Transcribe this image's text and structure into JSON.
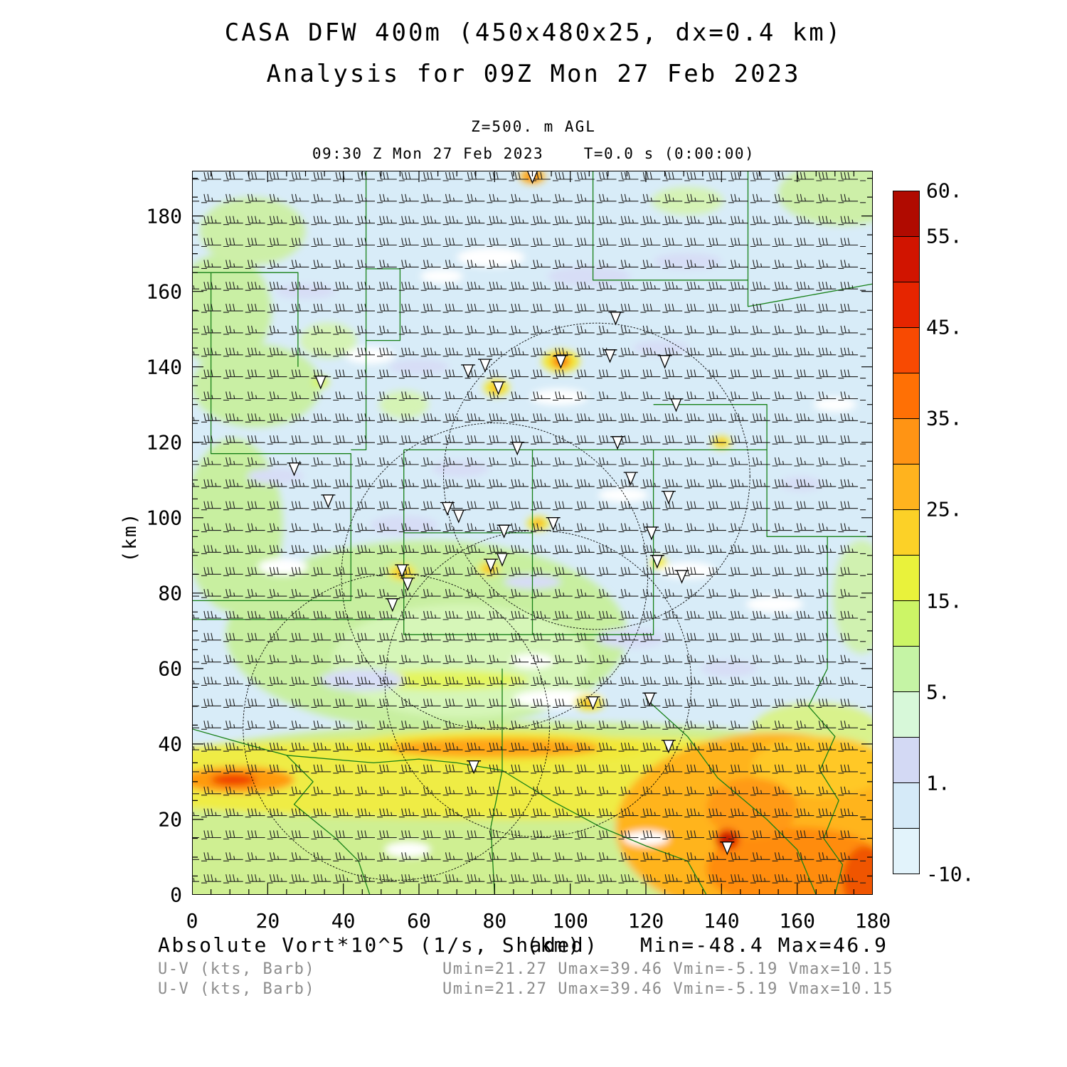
{
  "header": {
    "title_line1": "CASA DFW 400m (450x480x25, dx=0.4 km)",
    "title_line2": "Analysis for 09Z Mon 27 Feb 2023",
    "level_label": "Z=500. m AGL",
    "time_label": "09:30 Z Mon 27 Feb 2023    T=0.0 s (0:00:00)"
  },
  "annotations": {
    "row1_left": "Absolute Vort*10^5 (1/s, Shaded)",
    "row1_mid": "(km)",
    "row1_right": "Min=-48.4 Max=46.9",
    "row2_left": "U-V (kts, Barb)",
    "row2_right": "Umin=21.27 Umax=39.46 Vmin=-5.19 Vmax=10.15",
    "row3_left": "U-V (kts, Barb)",
    "row3_right": "Umin=21.27 Umax=39.46 Vmin=-5.19 Vmax=10.15"
  },
  "axes": {
    "x_unit": "(km)",
    "y_unit": "(km)",
    "x_range_km": [
      0,
      180
    ],
    "y_range_km": [
      0,
      192
    ],
    "x_tick_labels": [
      "0",
      "20",
      "40",
      "60",
      "80",
      "100",
      "120",
      "140",
      "160",
      "180"
    ],
    "y_tick_labels": [
      "0",
      "20",
      "40",
      "60",
      "80",
      "100",
      "120",
      "140",
      "160",
      "180"
    ],
    "tick_step_major_km": 20,
    "tick_step_minor_km": 5
  },
  "colorbar": {
    "cell_colors_bottom_to_top": [
      "#E2F3FB",
      "#D5EAF8",
      "#D3D9F4",
      "#D7F8D9",
      "#C5F4A5",
      "#CCF566",
      "#E9F23B",
      "#FCD127",
      "#FFB31E",
      "#FF9414",
      "#FF7005",
      "#F84A02",
      "#E62500",
      "#D11400",
      "#B00A00"
    ],
    "levels": [
      -10,
      -5,
      1,
      3,
      5,
      10,
      15,
      20,
      25,
      30,
      35,
      40,
      45,
      50,
      55,
      60
    ],
    "ticks": [
      {
        "label": "60.",
        "cell_from_top": 0
      },
      {
        "label": "55.",
        "cell_from_top": 1
      },
      {
        "label": "45.",
        "cell_from_top": 3
      },
      {
        "label": "35.",
        "cell_from_top": 5
      },
      {
        "label": "25.",
        "cell_from_top": 7
      },
      {
        "label": "15.",
        "cell_from_top": 9
      },
      {
        "label": "5.",
        "cell_from_top": 11
      },
      {
        "label": "1.",
        "cell_from_top": 13
      },
      {
        "label": "-10.",
        "cell_from_top": 15
      }
    ]
  },
  "chart_data": {
    "type": "heatmap",
    "title": "CASA DFW 400m (450x480x25, dx=0.4 km) Analysis for 09Z Mon 27 Feb 2023",
    "field": "Absolute Vort*10^5 (1/s, Shaded)",
    "field_min": -48.4,
    "field_max": 46.9,
    "wind": {
      "units": "kts",
      "umin": 21.27,
      "umax": 39.46,
      "vmin": -5.19,
      "vmax": 10.15
    },
    "grid_dims": "450x480x25",
    "dx_km": 0.4,
    "level": "Z=500. m AGL",
    "valid_time": "09:30 Z Mon 27 Feb 2023",
    "forecast_time": "T=0.0 s (0:00:00)",
    "xlabel": "(km)",
    "ylabel": "(km)",
    "xlim": [
      0,
      180
    ],
    "ylim": [
      0,
      192
    ],
    "colors": {
      "background_fill": "#D8ECF8",
      "county_line": "#178017",
      "range_circle": "#000000",
      "barb": "#1c1c1c"
    },
    "barb_grid": {
      "cols": 31,
      "rows": 33,
      "speed_range_kts": [
        21,
        40
      ]
    },
    "range_circles_km": [
      {
        "cx": 107,
        "cy": 111,
        "r": 40.5
      },
      {
        "cx": 80,
        "cy": 84.5,
        "r": 40.5
      },
      {
        "cx": 91.5,
        "cy": 56,
        "r": 40.5
      },
      {
        "cx": 54,
        "cy": 44.5,
        "r": 40.5
      }
    ],
    "radar_sites_km": [
      [
        90,
        190.5
      ],
      [
        34,
        136
      ],
      [
        73,
        139
      ],
      [
        77.5,
        140.5
      ],
      [
        81,
        134.5
      ],
      [
        97.5,
        141.5
      ],
      [
        110.5,
        143
      ],
      [
        125,
        141.5
      ],
      [
        112,
        153
      ],
      [
        128,
        130
      ],
      [
        112.5,
        120
      ],
      [
        86,
        118.5
      ],
      [
        116,
        110.5
      ],
      [
        126,
        105.5
      ],
      [
        27,
        113
      ],
      [
        36,
        104.5
      ],
      [
        67.5,
        102.5
      ],
      [
        70.5,
        100.5
      ],
      [
        82.5,
        96.5
      ],
      [
        95.5,
        98.5
      ],
      [
        121.5,
        96
      ],
      [
        123,
        88.5
      ],
      [
        129.5,
        84.5
      ],
      [
        55.5,
        86
      ],
      [
        57,
        82.5
      ],
      [
        53,
        77
      ],
      [
        79,
        87.5
      ],
      [
        82,
        89
      ],
      [
        106,
        51
      ],
      [
        121,
        52
      ],
      [
        126,
        39.5
      ],
      [
        74.5,
        34
      ],
      [
        141.5,
        12.5
      ]
    ],
    "county_lines_km": [
      [
        [
          0,
          165
        ],
        [
          28,
          165
        ],
        [
          28,
          140
        ]
      ],
      [
        [
          5,
          165
        ],
        [
          5,
          117
        ],
        [
          28,
          117
        ]
      ],
      [
        [
          28,
          117
        ],
        [
          42,
          117
        ],
        [
          42,
          78
        ],
        [
          0,
          78
        ]
      ],
      [
        [
          46,
          192
        ],
        [
          46,
          118
        ],
        [
          42,
          118
        ]
      ],
      [
        [
          46,
          166
        ],
        [
          55,
          166
        ],
        [
          55,
          147
        ],
        [
          46,
          147
        ]
      ],
      [
        [
          106,
          192
        ],
        [
          106,
          163
        ],
        [
          147,
          163
        ]
      ],
      [
        [
          147,
          192
        ],
        [
          147,
          156
        ],
        [
          158,
          158
        ],
        [
          180,
          162
        ]
      ],
      [
        [
          56,
          118
        ],
        [
          90,
          118
        ],
        [
          90,
          96
        ],
        [
          56,
          96
        ],
        [
          56,
          118
        ]
      ],
      [
        [
          90,
          118
        ],
        [
          122,
          118
        ],
        [
          122,
          69
        ],
        [
          90,
          69
        ],
        [
          90,
          96
        ]
      ],
      [
        [
          56,
          96
        ],
        [
          56,
          69
        ],
        [
          90,
          69
        ]
      ],
      [
        [
          0,
          73
        ],
        [
          56,
          73
        ]
      ],
      [
        [
          122,
          118
        ],
        [
          152,
          118
        ],
        [
          152,
          130
        ],
        [
          122,
          130
        ]
      ],
      [
        [
          152,
          118
        ],
        [
          152,
          95
        ],
        [
          168,
          95
        ],
        [
          168,
          60
        ]
      ],
      [
        [
          168,
          95
        ],
        [
          180,
          95
        ]
      ],
      [
        [
          0,
          44
        ],
        [
          14,
          40
        ],
        [
          25,
          37
        ],
        [
          32,
          30
        ],
        [
          27,
          24
        ],
        [
          38,
          15
        ],
        [
          44,
          9
        ],
        [
          47,
          0
        ]
      ],
      [
        [
          25,
          37
        ],
        [
          48,
          35
        ],
        [
          60,
          36
        ],
        [
          70,
          35
        ],
        [
          82,
          33
        ]
      ],
      [
        [
          82,
          60
        ],
        [
          82,
          33
        ],
        [
          79,
          18
        ],
        [
          80,
          0
        ]
      ],
      [
        [
          82,
          33
        ],
        [
          95,
          25
        ],
        [
          108,
          18
        ],
        [
          120,
          13
        ],
        [
          131,
          9
        ],
        [
          136,
          0
        ]
      ],
      [
        [
          120,
          52
        ],
        [
          131,
          42
        ],
        [
          139,
          31
        ],
        [
          152,
          20
        ],
        [
          160,
          12
        ],
        [
          165,
          0
        ]
      ],
      [
        [
          168,
          60
        ],
        [
          163,
          50
        ],
        [
          170,
          42
        ],
        [
          166,
          33
        ],
        [
          171,
          25
        ],
        [
          167,
          15
        ],
        [
          172,
          8
        ],
        [
          170,
          0
        ]
      ]
    ],
    "shading_blobs_km": [
      [
        90,
        16,
        140,
        30,
        "#CFEF92"
      ],
      [
        90,
        31,
        135,
        11,
        "#EFEC45"
      ],
      [
        62,
        69,
        53,
        25,
        "#C8EFA0"
      ],
      [
        71,
        62,
        34,
        15,
        "#D6F6B8"
      ],
      [
        66,
        57,
        23,
        2.6,
        "#E3F55E"
      ],
      [
        11,
        98,
        13,
        23,
        "#C8EFA0"
      ],
      [
        17,
        135,
        17,
        11,
        "#C9EFA4"
      ],
      [
        8,
        155,
        13,
        15,
        "#C9EFA4"
      ],
      [
        16,
        176,
        14,
        9,
        "#CDEFA8"
      ],
      [
        36,
        147,
        7.5,
        4.7,
        "#D5F3B5"
      ],
      [
        56,
        130,
        6.5,
        3.7,
        "#D5F3B5"
      ],
      [
        172,
        186,
        17,
        8.5,
        "#CDEFA8"
      ],
      [
        131,
        184,
        9.5,
        3.7,
        "#D5F3B5"
      ],
      [
        177,
        79,
        7.5,
        15,
        "#D0F1B0"
      ],
      [
        165,
        43.5,
        17,
        7.5,
        "#D9F28C"
      ],
      [
        154,
        18,
        42,
        25,
        "#FFB41E"
      ],
      [
        166,
        34,
        18,
        8,
        "#FFC825"
      ],
      [
        160,
        7,
        24,
        11,
        "#FF8C0F"
      ],
      [
        148,
        23,
        12,
        8,
        "#FF9A14"
      ],
      [
        178,
        4,
        6,
        9,
        "#F05505"
      ],
      [
        12,
        30.5,
        15,
        3.5,
        "#FF9A10"
      ],
      [
        11,
        30.5,
        6,
        1.6,
        "#EF3D02"
      ],
      [
        80,
        39,
        40,
        4.5,
        "#F2E838"
      ],
      [
        80,
        39,
        28,
        2.6,
        "#FFA514"
      ],
      [
        105,
        164,
        11,
        2.6,
        "#D7DDF6"
      ],
      [
        131,
        168,
        9,
        2.2,
        "#D7DDF6"
      ],
      [
        71,
        113,
        7.5,
        2.2,
        "#D7DDF6"
      ],
      [
        56,
        98,
        9,
        2.6,
        "#D7DDF6"
      ],
      [
        22,
        111,
        7.5,
        2.2,
        "#D7DDF6"
      ],
      [
        116,
        68,
        9,
        2.6,
        "#D7DDF6"
      ],
      [
        142,
        60,
        7.5,
        2.2,
        "#D7DDF6"
      ],
      [
        90,
        83,
        7.5,
        1.9,
        "#D7DDF6"
      ],
      [
        161,
        109,
        5.6,
        1.9,
        "#D7DDF6"
      ],
      [
        45,
        57,
        11,
        3,
        "#D7DDF6"
      ],
      [
        124,
        145,
        7.5,
        1.9,
        "#D7DDF6"
      ],
      [
        60,
        140,
        8,
        2,
        "#D7DDF6"
      ],
      [
        30,
        160,
        8,
        2,
        "#D7DDF6"
      ],
      [
        79,
        169,
        9,
        2.6,
        "#FFFFFF"
      ],
      [
        47,
        143,
        6.5,
        2.2,
        "#FFFFFF"
      ],
      [
        97,
        132,
        7.5,
        2.2,
        "#FFFFFF"
      ],
      [
        131,
        86,
        7.5,
        2.2,
        "#FFFFFF"
      ],
      [
        90,
        62,
        5.6,
        1.9,
        "#FFFFFF"
      ],
      [
        97,
        52,
        12,
        2.5,
        "#FFFFFF"
      ],
      [
        170,
        130,
        5.6,
        1.9,
        "#FFFFFF"
      ],
      [
        24,
        87,
        6.5,
        2.2,
        "#FFFFFF"
      ],
      [
        154,
        77,
        7.5,
        2.2,
        "#FFFFFF"
      ],
      [
        66,
        164,
        5.6,
        1.9,
        "#FFFFFF"
      ],
      [
        114,
        106,
        6.5,
        1.9,
        "#FFFFFF"
      ],
      [
        120,
        15,
        6,
        2,
        "#FFFFFF"
      ],
      [
        57,
        12,
        6,
        2,
        "#FFFFFF"
      ],
      [
        105,
        51,
        4,
        2.2,
        "#F2E838"
      ],
      [
        105,
        51,
        1.5,
        1,
        "#FFB31E"
      ],
      [
        97.5,
        141.5,
        5,
        3,
        "#F2E838"
      ],
      [
        97.5,
        141.5,
        2.6,
        1.9,
        "#FF9A10"
      ],
      [
        97.5,
        141.5,
        1.1,
        0.9,
        "#F03205"
      ],
      [
        80.5,
        134.5,
        3.4,
        2.2,
        "#F2E838"
      ],
      [
        80.5,
        134.5,
        1.3,
        1,
        "#FFA010"
      ],
      [
        91.5,
        98.5,
        3,
        1.9,
        "#F2E838"
      ],
      [
        91.5,
        98.5,
        1.1,
        0.9,
        "#FF8A0A"
      ],
      [
        55.5,
        85.5,
        3.7,
        2.2,
        "#F2E838"
      ],
      [
        55.5,
        85.5,
        1.5,
        1,
        "#FF9A10"
      ],
      [
        78.5,
        86.5,
        3,
        1.9,
        "#F2E838"
      ],
      [
        78.5,
        86.5,
        1.1,
        0.9,
        "#FF9A10"
      ],
      [
        140,
        120,
        2.6,
        1.7,
        "#F5EC3E"
      ],
      [
        140,
        120,
        0.9,
        0.8,
        "#FFA010"
      ],
      [
        123.5,
        88,
        2.2,
        1.5,
        "#F5EC3E"
      ],
      [
        90,
        190.5,
        3.4,
        1.9,
        "#FFB31E"
      ],
      [
        90,
        190.5,
        1.5,
        0.9,
        "#FF7005"
      ],
      [
        34,
        136,
        2.2,
        1.5,
        "#D8F55E"
      ],
      [
        141.5,
        14.7,
        3.2,
        2.8,
        "#E62800"
      ],
      [
        141.5,
        14.7,
        1.4,
        1.2,
        "#A50700"
      ]
    ]
  }
}
